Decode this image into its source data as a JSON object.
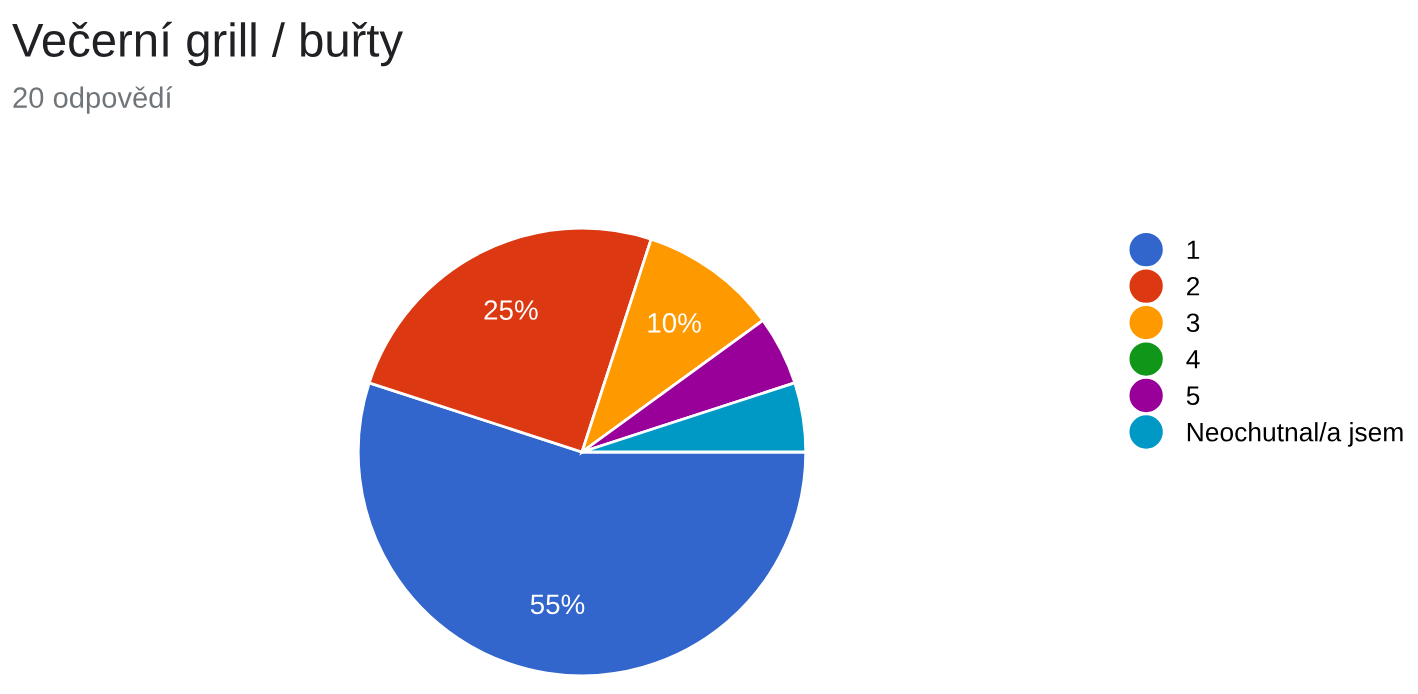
{
  "chart_data": {
    "type": "pie",
    "title": "Večerní grill / buřty",
    "subtitle": "20 odpovědí",
    "categories": [
      "1",
      "2",
      "3",
      "4",
      "5",
      "Neochutnal/a jsem"
    ],
    "values": [
      55,
      25,
      10,
      0,
      5,
      5
    ],
    "colors": [
      "#3366cc",
      "#dc3912",
      "#ff9900",
      "#109618",
      "#990099",
      "#0099c6"
    ],
    "value_labels": [
      "55%",
      "25%",
      "10%",
      null,
      null,
      null
    ],
    "legend": "right"
  }
}
